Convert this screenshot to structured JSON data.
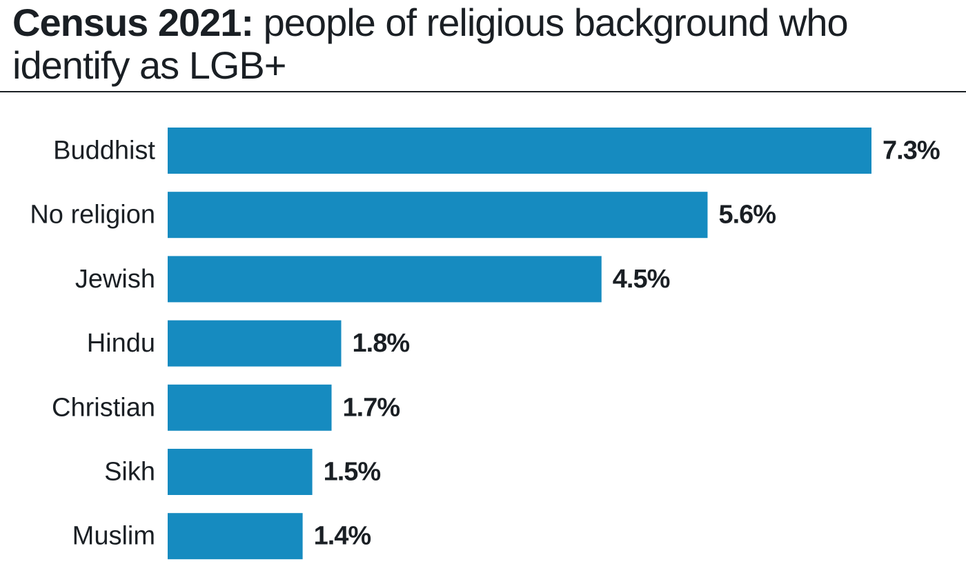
{
  "title": {
    "bold": "Census 2021:",
    "rest": " people of religious background who identify as LGB+"
  },
  "colors": {
    "bar": "#168bc0",
    "text": "#1a1f24"
  },
  "chart_data": {
    "type": "bar",
    "orientation": "horizontal",
    "title": "Census 2021: people of religious background who identify as LGB+",
    "xlabel": "",
    "ylabel": "",
    "unit": "%",
    "categories": [
      "Buddhist",
      "No religion",
      "Jewish",
      "Hindu",
      "Christian",
      "Sikh",
      "Muslim"
    ],
    "values": [
      7.3,
      5.6,
      4.5,
      1.8,
      1.7,
      1.5,
      1.4
    ],
    "value_labels": [
      "7.3%",
      "5.6%",
      "4.5%",
      "1.8%",
      "1.7%",
      "1.5%",
      "1.4%"
    ],
    "xlim": [
      0,
      7.3
    ],
    "grid": false,
    "legend": "none"
  }
}
